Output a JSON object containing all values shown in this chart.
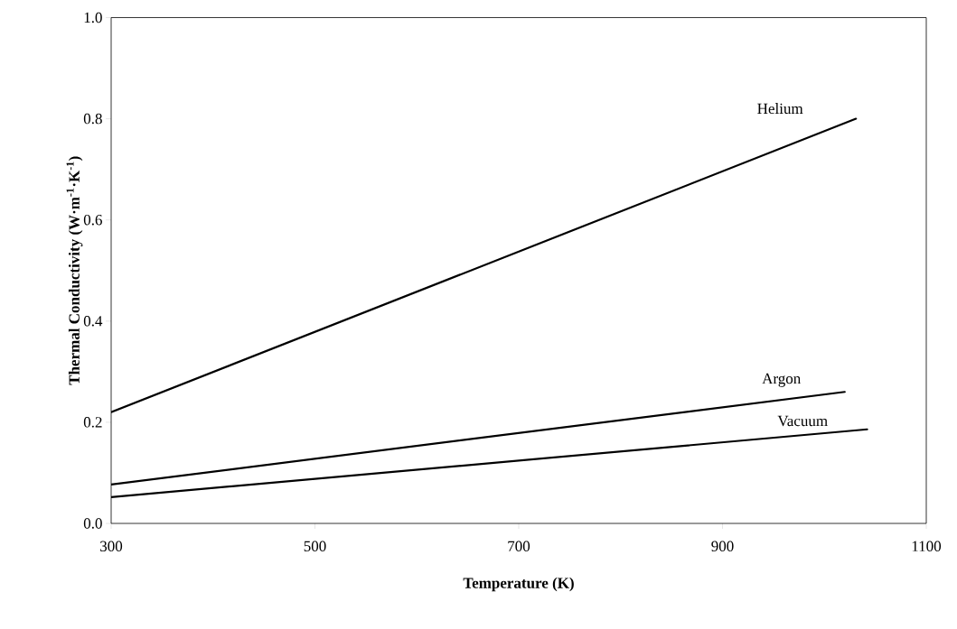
{
  "chart_data": {
    "type": "line",
    "xlabel": "Temperature (K)",
    "ylabel": "Thermal Conductivity (W·m$^{-1}$·K$^{-1}$)",
    "xlim": [
      300,
      1100
    ],
    "ylim": [
      0,
      1.0
    ],
    "xticks": [
      300,
      500,
      700,
      900,
      1100
    ],
    "yticks": [
      {
        "value": 0,
        "label": "0.0"
      },
      {
        "value": 0.2,
        "label": "0.2"
      },
      {
        "value": 0.4,
        "label": "0.4"
      },
      {
        "value": 0.6,
        "label": "0.6"
      },
      {
        "value": 0.8,
        "label": "0.8"
      },
      {
        "value": 1.0,
        "label": "1.0"
      }
    ],
    "grid": false,
    "legend": false,
    "marker": "none",
    "line_style": "solid",
    "series": [
      {
        "name": "Helium",
        "color": "#000000",
        "x": [
          300,
          1031
        ],
        "values": [
          0.22,
          0.8
        ]
      },
      {
        "name": "Argon",
        "color": "#000000",
        "x": [
          300,
          1020
        ],
        "values": [
          0.077,
          0.26
        ]
      },
      {
        "name": "Vacuum",
        "color": "#000000",
        "x": [
          300,
          1042
        ],
        "values": [
          0.052,
          0.186
        ]
      }
    ]
  }
}
